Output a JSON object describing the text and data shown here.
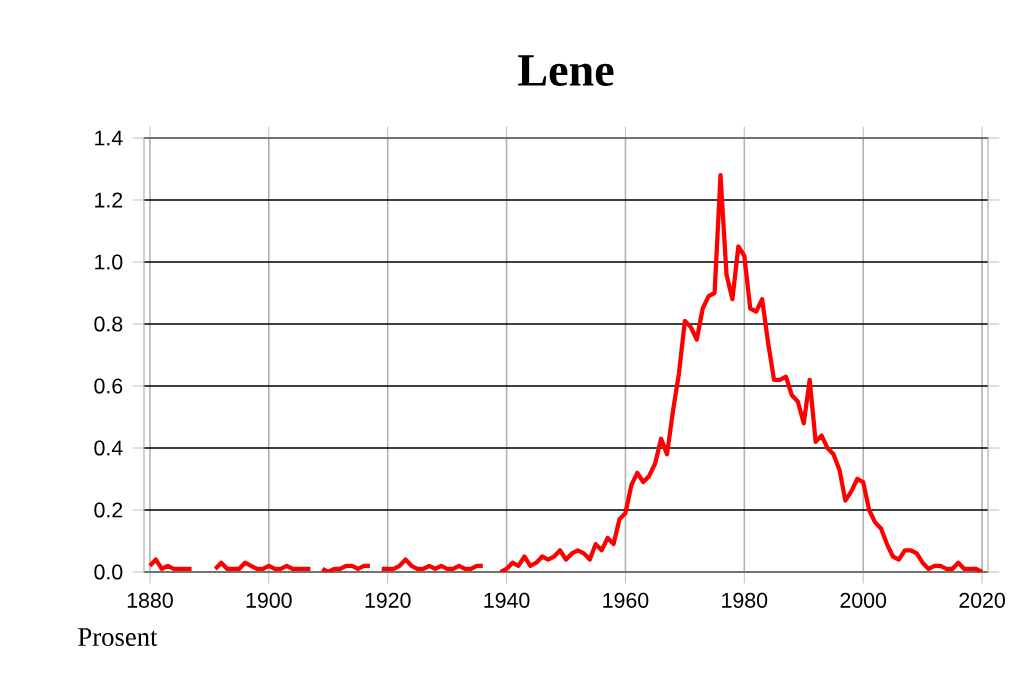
{
  "chart_data": {
    "type": "line",
    "title": "Lene",
    "ylabel": "Prosent",
    "x": [
      1880,
      1881,
      1882,
      1883,
      1884,
      1885,
      1886,
      1887,
      1888,
      1889,
      1890,
      1891,
      1892,
      1893,
      1894,
      1895,
      1896,
      1897,
      1898,
      1899,
      1900,
      1901,
      1902,
      1903,
      1904,
      1905,
      1906,
      1907,
      1908,
      1909,
      1910,
      1911,
      1912,
      1913,
      1914,
      1915,
      1916,
      1917,
      1918,
      1919,
      1920,
      1921,
      1922,
      1923,
      1924,
      1925,
      1926,
      1927,
      1928,
      1929,
      1930,
      1931,
      1932,
      1933,
      1934,
      1935,
      1936,
      1937,
      1938,
      1939,
      1940,
      1941,
      1942,
      1943,
      1944,
      1945,
      1946,
      1947,
      1948,
      1949,
      1950,
      1951,
      1952,
      1953,
      1954,
      1955,
      1956,
      1957,
      1958,
      1959,
      1960,
      1961,
      1962,
      1963,
      1964,
      1965,
      1966,
      1967,
      1968,
      1969,
      1970,
      1971,
      1972,
      1973,
      1974,
      1975,
      1976,
      1977,
      1978,
      1979,
      1980,
      1981,
      1982,
      1983,
      1984,
      1985,
      1986,
      1987,
      1988,
      1989,
      1990,
      1991,
      1992,
      1993,
      1994,
      1995,
      1996,
      1997,
      1998,
      1999,
      2000,
      2001,
      2002,
      2003,
      2004,
      2005,
      2006,
      2007,
      2008,
      2009,
      2010,
      2011,
      2012,
      2013,
      2014,
      2015,
      2016,
      2017,
      2018,
      2019,
      2020
    ],
    "series": [
      {
        "color": "#ff0000",
        "values": [
          0.02,
          0.04,
          0.01,
          0.02,
          0.01,
          0.01,
          0.01,
          0.01,
          null,
          null,
          null,
          0.01,
          0.03,
          0.01,
          0.01,
          0.01,
          0.03,
          0.02,
          0.01,
          0.01,
          0.02,
          0.01,
          0.01,
          0.02,
          0.01,
          0.01,
          0.01,
          0.01,
          null,
          0.01,
          0.0,
          0.01,
          0.01,
          0.02,
          0.02,
          0.01,
          0.02,
          0.02,
          null,
          0.01,
          0.01,
          0.01,
          0.02,
          0.04,
          0.02,
          0.01,
          0.01,
          0.02,
          0.01,
          0.02,
          0.01,
          0.01,
          0.02,
          0.01,
          0.01,
          0.02,
          0.02,
          null,
          null,
          0.0,
          0.01,
          0.03,
          0.02,
          0.05,
          0.02,
          0.03,
          0.05,
          0.04,
          0.05,
          0.07,
          0.04,
          0.06,
          0.07,
          0.06,
          0.04,
          0.09,
          0.07,
          0.11,
          0.09,
          0.17,
          0.19,
          0.28,
          0.32,
          0.29,
          0.31,
          0.35,
          0.43,
          0.38,
          0.52,
          0.64,
          0.81,
          0.79,
          0.75,
          0.85,
          0.89,
          0.9,
          1.28,
          0.96,
          0.88,
          1.05,
          1.02,
          0.85,
          0.84,
          0.88,
          0.74,
          0.62,
          0.62,
          0.63,
          0.57,
          0.55,
          0.48,
          0.62,
          0.42,
          0.44,
          0.4,
          0.38,
          0.33,
          0.23,
          0.26,
          0.3,
          0.29,
          0.2,
          0.16,
          0.14,
          0.09,
          0.05,
          0.04,
          0.07,
          0.07,
          0.06,
          0.03,
          0.01,
          0.02,
          0.02,
          0.01,
          0.01,
          0.03,
          0.01,
          0.01,
          0.01,
          0.0
        ]
      }
    ],
    "xlim": [
      1879,
      2021
    ],
    "xticks": [
      1880,
      1900,
      1920,
      1940,
      1960,
      1980,
      2000,
      2020
    ],
    "ylim": [
      0,
      1.4
    ],
    "yticks": [
      {
        "value": 0,
        "label": "0.0"
      },
      {
        "value": 0.2,
        "label": "0.2"
      },
      {
        "value": 0.4,
        "label": "0.4"
      },
      {
        "value": 0.6,
        "label": "0.6"
      },
      {
        "value": 0.8,
        "label": "0.8"
      },
      {
        "value": 1.0,
        "label": "1.0"
      },
      {
        "value": 1.2,
        "label": "1.2"
      },
      {
        "value": 1.4,
        "label": "1.4"
      }
    ],
    "grid": true
  }
}
